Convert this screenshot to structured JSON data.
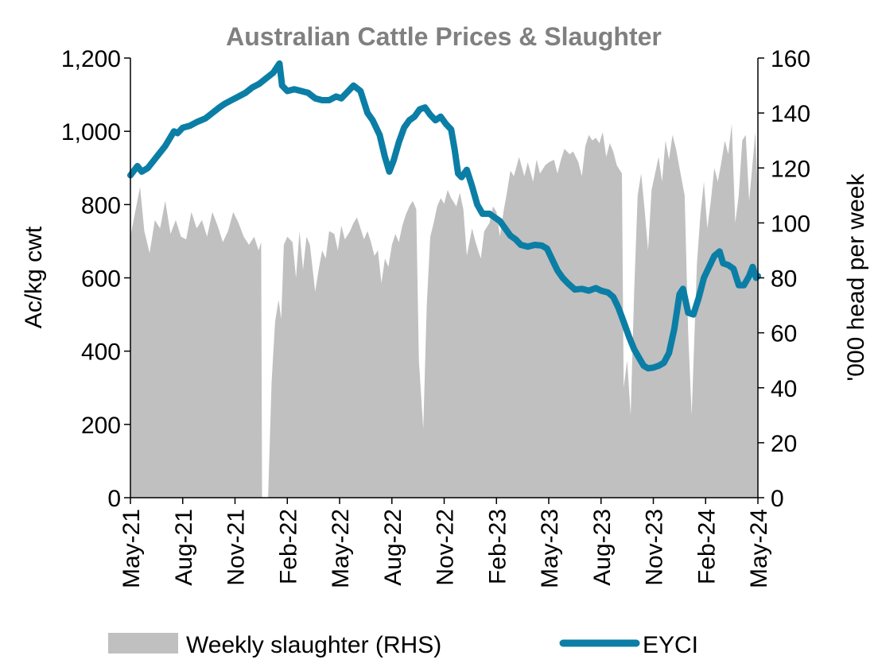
{
  "chart_data": {
    "type": "area+line",
    "title": "Australian Cattle Prices & Slaughter",
    "ylabel_left": "Ac/kg cwt",
    "ylabel_right": "'000 head per week",
    "yticks_left": [
      "1,200",
      "1,000",
      "800",
      "600",
      "400",
      "200",
      "0"
    ],
    "yticks_right": [
      "160",
      "140",
      "120",
      "100",
      "80",
      "60",
      "40",
      "20",
      "0"
    ],
    "ylim_left": [
      0,
      1200
    ],
    "ylim_right": [
      0,
      160
    ],
    "x_categories": [
      "May-21",
      "Aug-21",
      "Nov-21",
      "Feb-22",
      "May-22",
      "Aug-22",
      "Nov-22",
      "Feb-23",
      "May-23",
      "Aug-23",
      "Nov-23",
      "Feb-24",
      "May-24"
    ],
    "x_range_months": [
      0,
      36
    ],
    "colors": {
      "area": "#c0c0c0",
      "line": "#0b7ea6",
      "title": "#808080"
    },
    "legend": [
      {
        "label": "Weekly slaughter (RHS)",
        "kind": "area"
      },
      {
        "label": "EYCI",
        "kind": "line"
      }
    ],
    "legend_position": "bottom",
    "series": [
      {
        "name": "Weekly slaughter (RHS)",
        "axis": "right",
        "points": [
          [
            0,
            95
          ],
          [
            0.3,
            105
          ],
          [
            0.55,
            113
          ],
          [
            0.8,
            97
          ],
          [
            1.1,
            89
          ],
          [
            1.4,
            101
          ],
          [
            1.7,
            98
          ],
          [
            2.0,
            108
          ],
          [
            2.3,
            96
          ],
          [
            2.6,
            101
          ],
          [
            2.9,
            95
          ],
          [
            3.2,
            94
          ],
          [
            3.5,
            104
          ],
          [
            3.8,
            98
          ],
          [
            4.1,
            101
          ],
          [
            4.4,
            95
          ],
          [
            4.7,
            104
          ],
          [
            5.0,
            99
          ],
          [
            5.3,
            93
          ],
          [
            5.6,
            97
          ],
          [
            5.9,
            104
          ],
          [
            6.2,
            100
          ],
          [
            6.5,
            95
          ],
          [
            6.8,
            92
          ],
          [
            7.1,
            95
          ],
          [
            7.35,
            90
          ],
          [
            7.5,
            93
          ],
          [
            7.55,
            0
          ],
          [
            7.9,
            0
          ],
          [
            8.1,
            42
          ],
          [
            8.3,
            64
          ],
          [
            8.5,
            72
          ],
          [
            8.65,
            65
          ],
          [
            8.8,
            92
          ],
          [
            9.0,
            95
          ],
          [
            9.3,
            93
          ],
          [
            9.5,
            80
          ],
          [
            9.7,
            97
          ],
          [
            9.9,
            83
          ],
          [
            10.1,
            95
          ],
          [
            10.3,
            92
          ],
          [
            10.6,
            75
          ],
          [
            10.8,
            83
          ],
          [
            11.0,
            90
          ],
          [
            11.2,
            87
          ],
          [
            11.4,
            97
          ],
          [
            11.7,
            96
          ],
          [
            11.9,
            90
          ],
          [
            12.1,
            99
          ],
          [
            12.3,
            94
          ],
          [
            12.6,
            97
          ],
          [
            12.8,
            100
          ],
          [
            13.0,
            102
          ],
          [
            13.2,
            98
          ],
          [
            13.4,
            94
          ],
          [
            13.6,
            97
          ],
          [
            13.8,
            93
          ],
          [
            14.0,
            88
          ],
          [
            14.2,
            90
          ],
          [
            14.4,
            78
          ],
          [
            14.6,
            87
          ],
          [
            14.8,
            84
          ],
          [
            15.0,
            92
          ],
          [
            15.2,
            96
          ],
          [
            15.4,
            93
          ],
          [
            15.6,
            99
          ],
          [
            15.8,
            103
          ],
          [
            16.0,
            106
          ],
          [
            16.2,
            108
          ],
          [
            16.4,
            105
          ],
          [
            16.55,
            50
          ],
          [
            16.8,
            25
          ],
          [
            17.0,
            70
          ],
          [
            17.2,
            95
          ],
          [
            17.4,
            100
          ],
          [
            17.6,
            106
          ],
          [
            17.8,
            109
          ],
          [
            18.0,
            107
          ],
          [
            18.2,
            112
          ],
          [
            18.4,
            109
          ],
          [
            18.7,
            106
          ],
          [
            18.9,
            111
          ],
          [
            19.1,
            105
          ],
          [
            19.3,
            88
          ],
          [
            19.6,
            98
          ],
          [
            19.8,
            93
          ],
          [
            20.1,
            87
          ],
          [
            20.3,
            97
          ],
          [
            20.6,
            100
          ],
          [
            20.8,
            106
          ],
          [
            21.0,
            104
          ],
          [
            21.2,
            95
          ],
          [
            21.4,
            104
          ],
          [
            21.6,
            111
          ],
          [
            21.8,
            119
          ],
          [
            22.0,
            117
          ],
          [
            22.3,
            124
          ],
          [
            22.6,
            117
          ],
          [
            22.8,
            122
          ],
          [
            23.1,
            115
          ],
          [
            23.3,
            123
          ],
          [
            23.5,
            118
          ],
          [
            23.8,
            121
          ],
          [
            24.0,
            122
          ],
          [
            24.3,
            123
          ],
          [
            24.5,
            118
          ],
          [
            24.7,
            123
          ],
          [
            24.9,
            127
          ],
          [
            25.2,
            125
          ],
          [
            25.4,
            126
          ],
          [
            25.7,
            122
          ],
          [
            25.9,
            117
          ],
          [
            26.1,
            128
          ],
          [
            26.3,
            132
          ],
          [
            26.5,
            130
          ],
          [
            26.7,
            131
          ],
          [
            26.9,
            129
          ],
          [
            27.1,
            133
          ],
          [
            27.3,
            124
          ],
          [
            27.5,
            129
          ],
          [
            27.7,
            126
          ],
          [
            27.9,
            121
          ],
          [
            28.2,
            118
          ],
          [
            28.3,
            40
          ],
          [
            28.5,
            50
          ],
          [
            28.7,
            30
          ],
          [
            28.9,
            75
          ],
          [
            29.1,
            110
          ],
          [
            29.3,
            118
          ],
          [
            29.5,
            105
          ],
          [
            29.7,
            90
          ],
          [
            29.9,
            112
          ],
          [
            30.1,
            118
          ],
          [
            30.3,
            124
          ],
          [
            30.5,
            115
          ],
          [
            30.7,
            130
          ],
          [
            30.9,
            123
          ],
          [
            31.1,
            132
          ],
          [
            31.3,
            127
          ],
          [
            31.5,
            120
          ],
          [
            31.8,
            110
          ],
          [
            32.0,
            60
          ],
          [
            32.2,
            30
          ],
          [
            32.5,
            85
          ],
          [
            32.7,
            103
          ],
          [
            32.9,
            115
          ],
          [
            33.1,
            98
          ],
          [
            33.3,
            108
          ],
          [
            33.5,
            120
          ],
          [
            33.7,
            115
          ],
          [
            33.9,
            122
          ],
          [
            34.1,
            130
          ],
          [
            34.3,
            125
          ],
          [
            34.5,
            136
          ],
          [
            34.7,
            100
          ],
          [
            34.9,
            110
          ],
          [
            35.1,
            130
          ],
          [
            35.3,
            132
          ],
          [
            35.5,
            108
          ],
          [
            35.7,
            122
          ],
          [
            35.85,
            133
          ],
          [
            36.0,
            110
          ]
        ]
      },
      {
        "name": "EYCI",
        "axis": "left",
        "points": [
          [
            0,
            880
          ],
          [
            0.4,
            905
          ],
          [
            0.65,
            890
          ],
          [
            1.0,
            900
          ],
          [
            1.5,
            930
          ],
          [
            2.0,
            960
          ],
          [
            2.5,
            1000
          ],
          [
            2.7,
            995
          ],
          [
            3.0,
            1010
          ],
          [
            3.4,
            1015
          ],
          [
            3.8,
            1025
          ],
          [
            4.3,
            1035
          ],
          [
            4.7,
            1050
          ],
          [
            5.1,
            1065
          ],
          [
            5.4,
            1075
          ],
          [
            5.8,
            1085
          ],
          [
            6.2,
            1095
          ],
          [
            6.6,
            1105
          ],
          [
            7.0,
            1120
          ],
          [
            7.4,
            1130
          ],
          [
            7.8,
            1145
          ],
          [
            8.2,
            1160
          ],
          [
            8.55,
            1185
          ],
          [
            8.7,
            1125
          ],
          [
            9.0,
            1110
          ],
          [
            9.4,
            1115
          ],
          [
            9.8,
            1110
          ],
          [
            10.2,
            1105
          ],
          [
            10.6,
            1090
          ],
          [
            11.0,
            1085
          ],
          [
            11.4,
            1085
          ],
          [
            11.8,
            1095
          ],
          [
            12.1,
            1090
          ],
          [
            12.5,
            1110
          ],
          [
            12.8,
            1125
          ],
          [
            13.2,
            1110
          ],
          [
            13.6,
            1050
          ],
          [
            13.9,
            1030
          ],
          [
            14.3,
            990
          ],
          [
            14.6,
            930
          ],
          [
            14.85,
            890
          ],
          [
            15.1,
            920
          ],
          [
            15.4,
            970
          ],
          [
            15.7,
            1010
          ],
          [
            16.0,
            1030
          ],
          [
            16.3,
            1040
          ],
          [
            16.6,
            1060
          ],
          [
            16.9,
            1065
          ],
          [
            17.2,
            1045
          ],
          [
            17.5,
            1030
          ],
          [
            17.8,
            1040
          ],
          [
            18.1,
            1020
          ],
          [
            18.4,
            1005
          ],
          [
            18.6,
            950
          ],
          [
            18.8,
            885
          ],
          [
            19.0,
            875
          ],
          [
            19.3,
            895
          ],
          [
            19.6,
            850
          ],
          [
            19.9,
            800
          ],
          [
            20.2,
            775
          ],
          [
            20.6,
            775
          ],
          [
            20.9,
            765
          ],
          [
            21.2,
            755
          ],
          [
            21.5,
            735
          ],
          [
            21.8,
            715
          ],
          [
            22.1,
            705
          ],
          [
            22.4,
            690
          ],
          [
            22.8,
            685
          ],
          [
            23.2,
            690
          ],
          [
            23.6,
            688
          ],
          [
            23.9,
            680
          ],
          [
            24.2,
            650
          ],
          [
            24.5,
            620
          ],
          [
            24.8,
            600
          ],
          [
            25.1,
            585
          ],
          [
            25.5,
            568
          ],
          [
            25.9,
            570
          ],
          [
            26.3,
            565
          ],
          [
            26.7,
            572
          ],
          [
            27.0,
            565
          ],
          [
            27.4,
            560
          ],
          [
            27.7,
            548
          ],
          [
            28.0,
            518
          ],
          [
            28.3,
            480
          ],
          [
            28.6,
            440
          ],
          [
            28.9,
            405
          ],
          [
            29.2,
            380
          ],
          [
            29.45,
            360
          ],
          [
            29.7,
            353
          ],
          [
            30.0,
            355
          ],
          [
            30.3,
            360
          ],
          [
            30.6,
            368
          ],
          [
            30.9,
            395
          ],
          [
            31.2,
            460
          ],
          [
            31.5,
            555
          ],
          [
            31.7,
            570
          ],
          [
            32.0,
            505
          ],
          [
            32.3,
            500
          ],
          [
            32.6,
            545
          ],
          [
            32.9,
            600
          ],
          [
            33.2,
            630
          ],
          [
            33.5,
            660
          ],
          [
            33.8,
            672
          ],
          [
            34.0,
            640
          ],
          [
            34.3,
            635
          ],
          [
            34.6,
            625
          ],
          [
            34.9,
            580
          ],
          [
            35.2,
            580
          ],
          [
            35.5,
            605
          ],
          [
            35.7,
            630
          ],
          [
            35.9,
            600
          ],
          [
            36.0,
            605
          ]
        ]
      }
    ]
  }
}
